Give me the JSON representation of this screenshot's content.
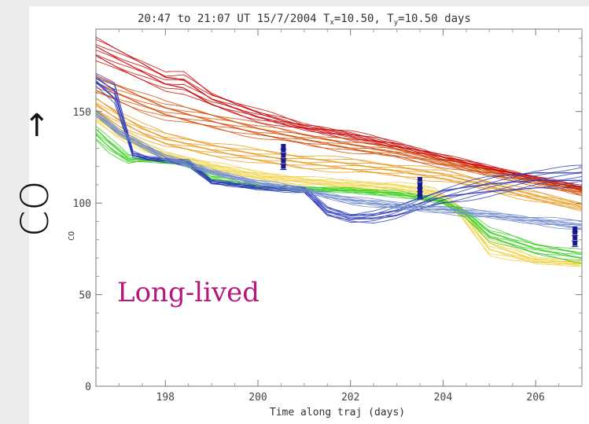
{
  "chart_data": {
    "type": "line",
    "title": "20:47 to 21:07 UT 15/7/2004    T",
    "title_parts": {
      "prefix": "20:47 to 21:07 UT 15/7/2004",
      "tx_symbol": "T",
      "tx_sub": "x",
      "tx_value": "=10.50,",
      "ty_symbol": "T",
      "ty_sub": "y",
      "ty_value": "=10.50 days"
    },
    "xlabel": "Time along traj  (days)",
    "ylabel_side": "CO",
    "ylabel_sub": "CO",
    "xlim": [
      196.5,
      207.0
    ],
    "ylim": [
      0,
      195
    ],
    "x_ticks": [
      198,
      200,
      202,
      204,
      206
    ],
    "y_ticks": [
      0,
      50,
      100,
      150
    ],
    "x_tick_labels": [
      "198",
      "200",
      "202",
      "204",
      "206"
    ],
    "y_tick_labels": [
      "0",
      "50",
      "100",
      "150"
    ],
    "annotation": "Long-lived",
    "grid": false,
    "series_bands": [
      {
        "color": "#c80000",
        "x": [
          196.5,
          197,
          197.5,
          198,
          198.4,
          199,
          200,
          201,
          202,
          203,
          204,
          205,
          206,
          207
        ],
        "y_top": [
          190,
          184,
          178,
          171,
          171,
          160,
          151,
          143,
          139,
          133,
          126,
          120,
          114,
          109
        ],
        "y_bottom": [
          178,
          172,
          167,
          162,
          160,
          153,
          145,
          140,
          135,
          130,
          124,
          118,
          113,
          107
        ]
      },
      {
        "color": "#d24a00",
        "x": [
          196.5,
          197,
          197.5,
          198,
          199,
          200,
          201,
          202,
          203,
          204,
          205,
          206,
          207
        ],
        "y_top": [
          170,
          165,
          160,
          155,
          149,
          143,
          138,
          134,
          130,
          124,
          118,
          113,
          108
        ],
        "y_bottom": [
          160,
          155,
          150,
          146,
          141,
          136,
          132,
          128,
          125,
          120,
          115,
          110,
          104
        ]
      },
      {
        "color": "#ea9a1c",
        "x": [
          196.5,
          197,
          197.5,
          198,
          199,
          200,
          201,
          202,
          203,
          204,
          205,
          206,
          207
        ],
        "y_top": [
          158,
          150,
          143,
          138,
          133,
          129,
          126,
          124,
          121,
          118,
          112,
          106,
          100
        ],
        "y_bottom": [
          150,
          142,
          136,
          131,
          126,
          122,
          119,
          117,
          115,
          112,
          107,
          101,
          96
        ]
      },
      {
        "color": "#f0d040",
        "x": [
          196.5,
          197,
          197.5,
          198,
          199,
          200,
          201,
          202,
          203,
          203.8,
          204.4,
          205,
          206,
          207
        ],
        "y_top": [
          150,
          140,
          133,
          128,
          122,
          117,
          114,
          112,
          111,
          108,
          98,
          80,
          70,
          68
        ],
        "y_bottom": [
          145,
          136,
          129,
          124,
          118,
          113,
          110,
          108,
          106,
          104,
          92,
          72,
          67,
          66
        ]
      },
      {
        "color": "#38d020",
        "x": [
          196.5,
          196.8,
          197.2,
          197.6,
          198,
          198.4,
          199,
          200,
          201,
          202,
          203,
          204,
          204.5,
          205,
          206,
          207
        ],
        "y_top": [
          142,
          135,
          126,
          124,
          124,
          123,
          115,
          110,
          108,
          108,
          106,
          102,
          96,
          86,
          78,
          74
        ],
        "y_bottom": [
          135,
          128,
          122,
          123,
          122,
          122,
          112,
          108,
          107,
          106,
          104,
          100,
          92,
          80,
          72,
          68
        ]
      },
      {
        "color": "#2a38b8",
        "x": [
          196.5,
          196.9,
          197.3,
          197.6,
          198,
          198.5,
          199,
          200,
          201,
          201.5,
          202,
          202.5,
          203,
          203.5,
          204,
          205,
          206,
          207
        ],
        "y_top": [
          170,
          165,
          128,
          125,
          124,
          123,
          112,
          109,
          108,
          98,
          94,
          95,
          98,
          103,
          108,
          114,
          118,
          120
        ],
        "y_bottom": [
          165,
          155,
          125,
          124,
          123,
          121,
          111,
          108,
          106,
          93,
          90,
          90,
          92,
          96,
          100,
          104,
          108,
          110
        ]
      },
      {
        "color": "#6e8acb",
        "x": [
          196.5,
          197,
          198,
          199,
          200,
          201,
          202,
          203,
          204,
          205,
          206,
          207
        ],
        "y_top": [
          150,
          140,
          126,
          118,
          112,
          108,
          103,
          100,
          98,
          95,
          92,
          90
        ],
        "y_bottom": [
          148,
          137,
          124,
          116,
          110,
          106,
          100,
          97,
          95,
          92,
          89,
          85
        ]
      }
    ],
    "observations": [
      {
        "x": 200.55,
        "y": [
          120,
          123,
          126,
          129,
          131
        ]
      },
      {
        "x": 203.5,
        "y": [
          104,
          106,
          108,
          110,
          113
        ]
      },
      {
        "x": 206.85,
        "y": [
          78,
          81,
          84,
          86
        ]
      }
    ],
    "observation_color": "#1a1a8c"
  }
}
